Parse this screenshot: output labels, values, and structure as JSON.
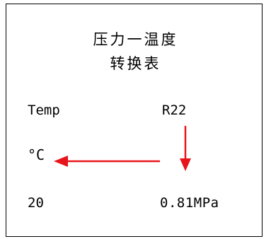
{
  "title": {
    "line1": "压力一温度",
    "line2": "转换表"
  },
  "table": {
    "temp_header": "Temp",
    "refrigerant_header": "R22",
    "unit": "°C",
    "temp_value": "20",
    "pressure_value": "0.81MPa"
  },
  "colors": {
    "arrow": "#e8141b",
    "border": "#000000"
  }
}
